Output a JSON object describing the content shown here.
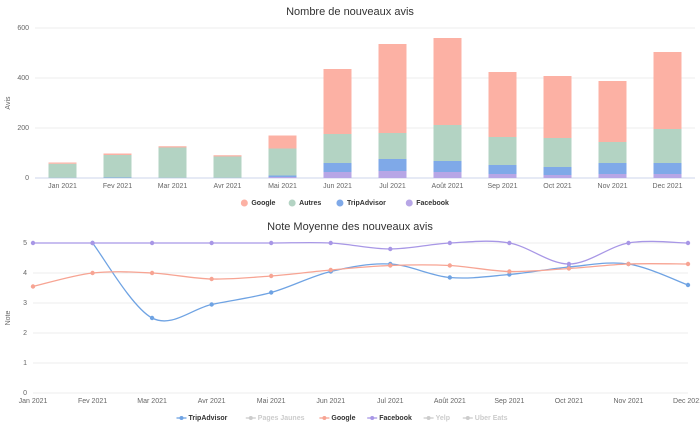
{
  "chart_data": [
    {
      "type": "stacked-bar",
      "title": "Nombre de nouveaux avis",
      "y_label": "Avis",
      "categories": [
        "Jan 2021",
        "Fev 2021",
        "Mar 2021",
        "Avr 2021",
        "Mai 2021",
        "Jun 2021",
        "Jul 2021",
        "Août 2021",
        "Sep 2021",
        "Oct 2021",
        "Nov 2021",
        "Dec 2021"
      ],
      "ylim": [
        0,
        600
      ],
      "yticks": [
        0,
        200,
        400,
        600
      ],
      "grid": true,
      "series": [
        {
          "name": "Google",
          "color": "#fcb1a4",
          "values": [
            5,
            6,
            5,
            5,
            52,
            260,
            356,
            348,
            260,
            248,
            244,
            308
          ]
        },
        {
          "name": "Autres",
          "color": "#b3d3c3",
          "values": [
            56,
            90,
            121,
            85,
            108,
            116,
            104,
            144,
            112,
            116,
            84,
            136
          ]
        },
        {
          "name": "TripAdvisor",
          "color": "#7fa9e8",
          "values": [
            1,
            2,
            1,
            1,
            6,
            36,
            48,
            44,
            36,
            32,
            44,
            44
          ]
        },
        {
          "name": "Facebook",
          "color": "#b7a6e6",
          "values": [
            0,
            0,
            0,
            0,
            4,
            24,
            28,
            24,
            16,
            12,
            16,
            16
          ]
        }
      ]
    },
    {
      "type": "line",
      "title": "Note Moyenne des nouveaux avis",
      "y_label": "Note",
      "categories": [
        "Jan 2021",
        "Fev 2021",
        "Mar 2021",
        "Avr 2021",
        "Mai 2021",
        "Jun 2021",
        "Jul 2021",
        "Août 2021",
        "Sep 2021",
        "Oct 2021",
        "Nov 2021",
        "Dec 2021"
      ],
      "ylim": [
        0,
        5
      ],
      "yticks": [
        0,
        1,
        2,
        3,
        4,
        5
      ],
      "grid": true,
      "series": [
        {
          "name": "TripAdvisor",
          "color": "#6fa3e3",
          "values": [
            null,
            5,
            2.5,
            2.95,
            3.35,
            4.05,
            4.3,
            3.85,
            3.95,
            4.2,
            4.3,
            3.6
          ]
        },
        {
          "name": "Pages Jaunes",
          "color": "#cccccc",
          "hidden": true,
          "values": [
            null,
            null,
            null,
            null,
            null,
            null,
            null,
            null,
            null,
            null,
            null,
            null
          ]
        },
        {
          "name": "Google",
          "color": "#f7a493",
          "values": [
            3.55,
            4,
            4,
            3.8,
            3.9,
            4.1,
            4.25,
            4.25,
            4.05,
            4.15,
            4.3,
            4.3
          ]
        },
        {
          "name": "Facebook",
          "color": "#a897e6",
          "values": [
            5,
            5,
            5,
            5,
            5,
            5,
            4.8,
            5,
            5,
            4.3,
            5,
            5
          ]
        },
        {
          "name": "Yelp",
          "color": "#cccccc",
          "hidden": true,
          "values": [
            null,
            null,
            null,
            null,
            null,
            null,
            null,
            null,
            null,
            null,
            null,
            null
          ]
        },
        {
          "name": "Uber Eats",
          "color": "#cccccc",
          "hidden": true,
          "values": [
            null,
            null,
            null,
            null,
            null,
            null,
            null,
            null,
            null,
            null,
            null,
            null
          ]
        }
      ]
    }
  ]
}
